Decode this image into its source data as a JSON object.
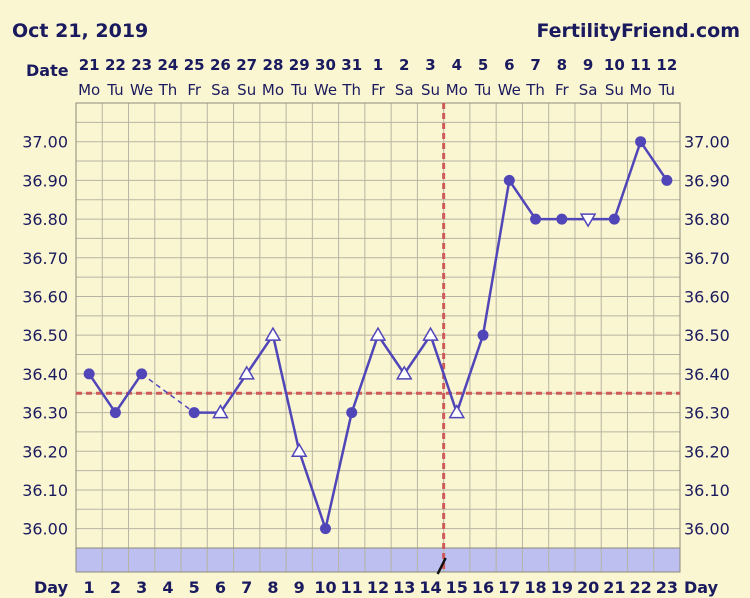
{
  "header": {
    "date": "Oct 21, 2019",
    "site": "FertilityFriend.com"
  },
  "labels": {
    "date_row": "Date",
    "day_row": "Day"
  },
  "colors": {
    "background": "#fbf6d2",
    "grid": "#b7b4a3",
    "series": "#5146b8",
    "coverline": "#cf5a5a",
    "day_strip": "#bcbff0",
    "text": "#1a1a5e"
  },
  "chart_data": {
    "type": "line",
    "title": "",
    "xlabel": "Day",
    "ylabel": "",
    "ylim": [
      35.95,
      37.1
    ],
    "yticks": [
      "37.00",
      "36.90",
      "36.80",
      "36.70",
      "36.60",
      "36.50",
      "36.40",
      "36.30",
      "36.20",
      "36.10",
      "36.00"
    ],
    "dates": [
      "21",
      "22",
      "23",
      "24",
      "25",
      "26",
      "27",
      "28",
      "29",
      "30",
      "31",
      "1",
      "2",
      "3",
      "4",
      "5",
      "6",
      "7",
      "8",
      "9",
      "10",
      "11",
      "12"
    ],
    "weekdays": [
      "Mo",
      "Tu",
      "We",
      "Th",
      "Fr",
      "Sa",
      "Su",
      "Mo",
      "Tu",
      "We",
      "Th",
      "Fr",
      "Sa",
      "Su",
      "Mo",
      "Tu",
      "We",
      "Th",
      "Fr",
      "Sa",
      "Su",
      "Mo",
      "Tu"
    ],
    "days": [
      "1",
      "2",
      "3",
      "4",
      "5",
      "6",
      "7",
      "8",
      "9",
      "10",
      "11",
      "12",
      "13",
      "14",
      "15",
      "16",
      "17",
      "18",
      "19",
      "20",
      "21",
      "22",
      "23"
    ],
    "series": [
      {
        "values": [
          36.4,
          36.3,
          36.4,
          null,
          36.3,
          36.3,
          36.4,
          36.5,
          36.2,
          36.0,
          36.3,
          36.5,
          36.4,
          36.5,
          36.3,
          36.5,
          36.9,
          36.8,
          36.8,
          36.8,
          36.8,
          37.0,
          36.9
        ],
        "markers": [
          "dot",
          "dot",
          "dot",
          "none",
          "dot",
          "triangle",
          "triangle",
          "triangle",
          "triangle",
          "dot",
          "dot",
          "triangle",
          "triangle",
          "triangle",
          "triangle",
          "dot",
          "dot",
          "dot",
          "dot",
          "triangle-down",
          "dot",
          "dot",
          "dot"
        ]
      }
    ],
    "dashed_segments": [
      [
        3,
        5
      ]
    ],
    "coverline": 36.35,
    "ovulation_day": 15
  }
}
